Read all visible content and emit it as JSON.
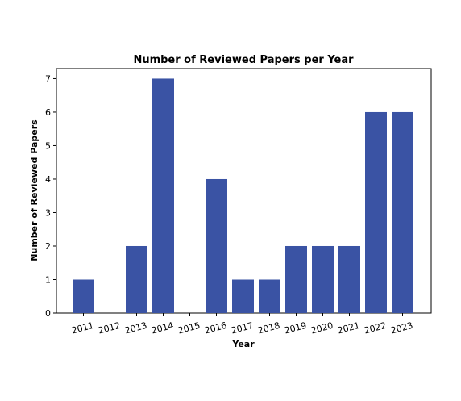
{
  "chart_data": {
    "type": "bar",
    "title": "Number of Reviewed Papers per Year",
    "xlabel": "Year",
    "ylabel": "Number of Reviewed Papers",
    "categories": [
      "2011",
      "2012",
      "2013",
      "2014",
      "2015",
      "2016",
      "2017",
      "2018",
      "2019",
      "2020",
      "2021",
      "2022",
      "2023"
    ],
    "values": [
      1,
      0,
      2,
      7,
      0,
      4,
      1,
      1,
      2,
      2,
      2,
      6,
      6
    ],
    "ylim": [
      0,
      7.3
    ],
    "yticks": [
      0,
      1,
      2,
      3,
      4,
      5,
      6,
      7
    ],
    "grid": false,
    "colors": {
      "bar": "#3a53a4"
    }
  }
}
